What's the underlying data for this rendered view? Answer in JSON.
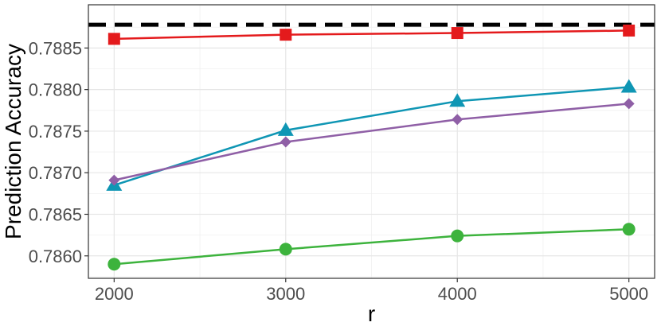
{
  "chart_data": {
    "type": "line",
    "title": "",
    "xlabel": "r",
    "ylabel": "Prediction Accuracy",
    "x": [
      2000,
      3000,
      4000,
      5000
    ],
    "x_ticks": [
      "2000",
      "3000",
      "4000",
      "5000"
    ],
    "xlim": [
      1850,
      5150
    ],
    "ylim": [
      0.78573,
      0.78902
    ],
    "y_ticks": [
      "0.7860",
      "0.7865",
      "0.7870",
      "0.7875",
      "0.7880",
      "0.7885"
    ],
    "y_tick_values": [
      0.786,
      0.7865,
      0.787,
      0.7875,
      0.788,
      0.7885
    ],
    "grid": true,
    "legend": "none",
    "reference_line": {
      "y": 0.78878,
      "style": "dashed",
      "color": "#000000"
    },
    "series": [
      {
        "color": "#e41a1c",
        "marker": "square",
        "values": [
          0.78861,
          0.78866,
          0.78868,
          0.78871
        ]
      },
      {
        "color": "#0f96b4",
        "marker": "triangle",
        "values": [
          0.78685,
          0.78751,
          0.78786,
          0.78803
        ]
      },
      {
        "color": "#8f5fa6",
        "marker": "diamond",
        "values": [
          0.78691,
          0.78737,
          0.78764,
          0.78783
        ]
      },
      {
        "color": "#3db33d",
        "marker": "circle",
        "values": [
          0.7859,
          0.78608,
          0.78624,
          0.78632
        ]
      }
    ]
  }
}
